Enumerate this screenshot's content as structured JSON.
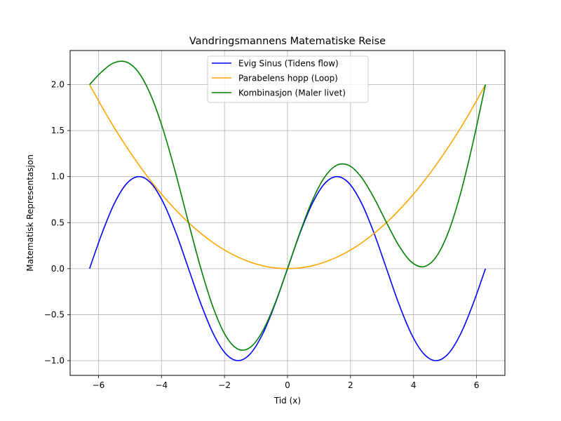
{
  "chart_data": {
    "type": "line",
    "title": "Vandringsmannens Matematiske Reise",
    "xlabel": "Tid (x)",
    "ylabel": "Matematisk Representasjon",
    "xlim": [
      -6.9,
      6.9
    ],
    "ylim": [
      -1.16,
      2.37
    ],
    "x_ticks": [
      -6,
      -4,
      -2,
      0,
      2,
      4,
      6
    ],
    "x_tick_labels": [
      "−6",
      "−4",
      "−2",
      "0",
      "2",
      "4",
      "6"
    ],
    "y_ticks": [
      -1.0,
      -0.5,
      0.0,
      0.5,
      1.0,
      1.5,
      2.0
    ],
    "y_tick_labels": [
      "−1.0",
      "−0.5",
      "0.0",
      "0.5",
      "1.0",
      "1.5",
      "2.0"
    ],
    "grid": true,
    "legend": "top-center",
    "x_range": [
      -6.2832,
      6.2832
    ],
    "series": [
      {
        "name": "Evig Sinus (Tidens flow)",
        "color": "#0000ff",
        "x": [
          -6.283,
          -5.89,
          -5.498,
          -5.105,
          -4.712,
          -4.32,
          -3.927,
          -3.534,
          -3.142,
          -2.749,
          -2.356,
          -1.963,
          -1.571,
          -1.178,
          -0.785,
          -0.393,
          0.0,
          0.393,
          0.785,
          1.178,
          1.571,
          1.963,
          2.356,
          2.749,
          3.142,
          3.534,
          3.927,
          4.32,
          4.712,
          5.105,
          5.498,
          5.89,
          6.283
        ],
        "y": [
          0.0,
          0.383,
          0.707,
          0.924,
          1.0,
          0.924,
          0.707,
          0.383,
          0.0,
          -0.383,
          -0.707,
          -0.924,
          -1.0,
          -0.924,
          -0.707,
          -0.383,
          0.0,
          0.383,
          0.707,
          0.924,
          1.0,
          0.924,
          0.707,
          0.383,
          0.0,
          -0.383,
          -0.707,
          -0.924,
          -1.0,
          -0.924,
          -0.707,
          -0.383,
          0.0
        ]
      },
      {
        "name": "Parabelens hopp (Loop)",
        "color": "#ffa500",
        "x": [
          -6.283,
          -5.89,
          -5.498,
          -5.105,
          -4.712,
          -4.32,
          -3.927,
          -3.534,
          -3.142,
          -2.749,
          -2.356,
          -1.963,
          -1.571,
          -1.178,
          -0.785,
          -0.393,
          0.0,
          0.393,
          0.785,
          1.178,
          1.571,
          1.963,
          2.356,
          2.749,
          3.142,
          3.534,
          3.927,
          4.32,
          4.712,
          5.105,
          5.498,
          5.89,
          6.283
        ],
        "y": [
          2.0,
          1.758,
          1.531,
          1.32,
          1.125,
          0.945,
          0.781,
          0.633,
          0.5,
          0.383,
          0.281,
          0.195,
          0.125,
          0.07,
          0.031,
          0.008,
          0.0,
          0.008,
          0.031,
          0.07,
          0.125,
          0.195,
          0.281,
          0.383,
          0.5,
          0.633,
          0.781,
          0.945,
          1.125,
          1.32,
          1.531,
          1.758,
          2.0
        ]
      },
      {
        "name": "Kombinasjon (Maler livet)",
        "color": "#008000",
        "x": [
          -6.283,
          -5.89,
          -5.498,
          -5.105,
          -4.712,
          -4.32,
          -3.927,
          -3.534,
          -3.142,
          -2.749,
          -2.356,
          -1.963,
          -1.571,
          -1.178,
          -0.785,
          -0.393,
          0.0,
          0.393,
          0.785,
          1.178,
          1.571,
          1.963,
          2.356,
          2.749,
          3.142,
          3.534,
          3.927,
          4.32,
          4.712,
          5.105,
          5.498,
          5.89,
          6.283
        ],
        "y": [
          2.0,
          2.141,
          2.238,
          2.244,
          2.125,
          1.869,
          1.488,
          1.016,
          0.5,
          -0.0,
          -0.426,
          -0.729,
          -0.875,
          -0.854,
          -0.676,
          -0.375,
          0.0,
          0.391,
          0.738,
          0.994,
          1.125,
          1.119,
          0.988,
          0.766,
          0.5,
          0.25,
          0.074,
          0.021,
          0.125,
          0.396,
          0.824,
          1.375,
          2.0
        ]
      }
    ]
  }
}
